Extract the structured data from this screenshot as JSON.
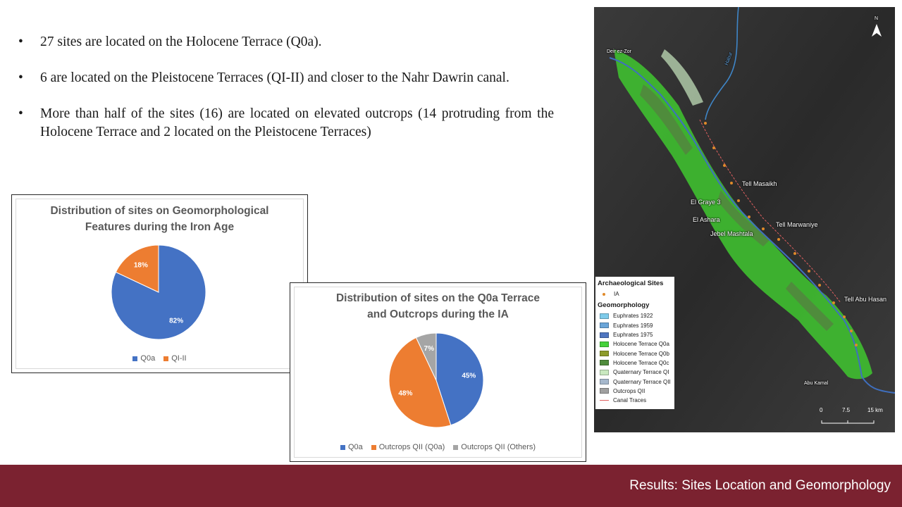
{
  "bullets": [
    "27 sites are located on the Holocene Terrace (Q0a).",
    "6 are located on the Pleistocene Terraces (QI-II) and closer to the Nahr Dawrin canal.",
    "More than half of the sites (16) are located on elevated outcrops (14 protruding from the Holocene Terrace and 2 located on the Pleistocene Terraces)"
  ],
  "bullet_symbol": "•",
  "chart_data": [
    {
      "type": "pie",
      "title": "Distribution of sites on Geomorphological Features during the Iron Age",
      "title_lines": [
        "Distribution of sites on Geomorphological",
        "Features during the Iron Age"
      ],
      "categories": [
        "Q0a",
        "QI-II"
      ],
      "values": [
        82,
        18
      ],
      "labels": [
        "82%",
        "18%"
      ],
      "colors": [
        "#4472c4",
        "#ed7d31"
      ],
      "legend_position": "bottom"
    },
    {
      "type": "pie",
      "title": "Distribution of sites on the Q0a Terrace and Outcrops during the IA",
      "title_lines": [
        "Distribution of sites on the Q0a Terrace",
        "and Outcrops during the IA"
      ],
      "categories": [
        "Q0a",
        "Outcrops QII (Q0a)",
        "Outcrops QII (Others)"
      ],
      "values": [
        45,
        48,
        7
      ],
      "labels": [
        "45%",
        "48%",
        "7%"
      ],
      "colors": [
        "#4472c4",
        "#ed7d31",
        "#a5a5a5"
      ],
      "legend_position": "bottom"
    }
  ],
  "map": {
    "north_label": "N",
    "place_labels": {
      "deir": "Deir ez-Zor",
      "habur": "Habur",
      "masaikh": "Tell Masaikh",
      "graye": "El Graye 3",
      "ashara": "El Ashara",
      "marwaniye": "Tell Marwaniye",
      "jebel": "Jebel Mashtala",
      "abuhasan": "Tell Abu Hasan",
      "abukamal": "Abu Kamal"
    },
    "legend": {
      "sites_heading": "Archaeological Sites",
      "sites_item": "IA",
      "geo_heading": "Geomorphology",
      "items": [
        {
          "label": "Euphrates 1922",
          "color": "#7ecbea"
        },
        {
          "label": "Euphrates 1959",
          "color": "#6aa5d8"
        },
        {
          "label": "Euphrates 1975",
          "color": "#4f76c0"
        },
        {
          "label": "Holocene Terrace Q0a",
          "color": "#45d13a"
        },
        {
          "label": "Holocene Terrace Q0b",
          "color": "#8c9b2a"
        },
        {
          "label": "Holocene Terrace Q0c",
          "color": "#4f8c3c"
        },
        {
          "label": "Quaternary Terrace QI",
          "color": "#c9e8c0"
        },
        {
          "label": "Quaternary Terrace QII",
          "color": "#a6b8cc"
        },
        {
          "label": "Outcrops QII",
          "color": "#a0a0a0"
        }
      ],
      "canal_label": "Canal Traces",
      "site_color": "#e08a2a",
      "canal_color": "#e06060"
    },
    "scale": [
      "0",
      "7.5",
      "15 km"
    ]
  },
  "footer": {
    "title": "Results: Sites Location and Geomorphology",
    "color": "#7b2230"
  }
}
